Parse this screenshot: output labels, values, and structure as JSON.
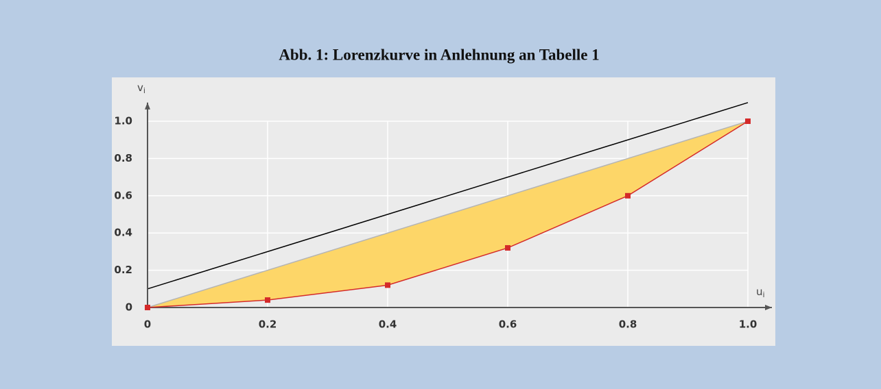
{
  "chart_data": {
    "type": "line",
    "title": "Abb. 1: Lorenzkurve in Anlehnung an Tabelle 1",
    "x_label": {
      "main": "u",
      "sub": "i"
    },
    "y_label": {
      "main": "v",
      "sub": "i"
    },
    "xlim": [
      0,
      1.04
    ],
    "ylim": [
      0,
      1.1
    ],
    "xticks": [
      0,
      0.2,
      0.4,
      0.6,
      0.8,
      {
        "value": 1,
        "label": "1.0"
      }
    ],
    "yticks": [
      0,
      0.2,
      0.4,
      0.6,
      0.8,
      {
        "value": 1,
        "label": "1.0"
      }
    ],
    "grid": true,
    "lorenz": {
      "x": [
        0,
        0.2,
        0.4,
        0.6,
        0.8,
        1
      ],
      "y": [
        0,
        0.04,
        0.12,
        0.32,
        0.6,
        1
      ],
      "color": "#d42a2a"
    },
    "equality_line": {
      "x": [
        0,
        1
      ],
      "y": [
        0,
        1
      ],
      "color": "#b4b4b4"
    },
    "area_color": "#fdd668",
    "reference_line": {
      "x": [
        0,
        1
      ],
      "y": [
        0.1,
        1.1
      ],
      "color": "#000000"
    }
  }
}
